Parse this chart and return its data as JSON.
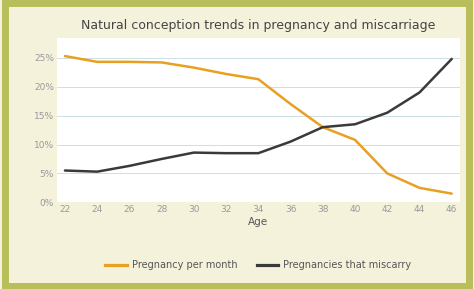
{
  "title": "Natural conception trends in pregnancy and miscarriage",
  "xlabel": "Age",
  "outer_bg": "#f5f2dc",
  "plot_background": "#ffffff",
  "border_color": "#b8be5a",
  "ages": [
    22,
    24,
    26,
    28,
    30,
    32,
    34,
    36,
    38,
    40,
    42,
    44,
    46
  ],
  "pregnancy_per_month": [
    0.253,
    0.243,
    0.243,
    0.242,
    0.233,
    0.222,
    0.213,
    0.17,
    0.13,
    0.108,
    0.05,
    0.025,
    0.015
  ],
  "pregnancies_miscarry": [
    0.055,
    0.053,
    0.063,
    0.075,
    0.086,
    0.085,
    0.085,
    0.105,
    0.13,
    0.135,
    0.155,
    0.19,
    0.248
  ],
  "line_color_pregnancy": "#e8a020",
  "line_color_miscarry": "#3a3a3a",
  "ylim": [
    0,
    0.285
  ],
  "yticks": [
    0,
    0.05,
    0.1,
    0.15,
    0.2,
    0.25
  ],
  "ytick_labels": [
    "0%",
    "5%",
    "10%",
    "15%",
    "20%",
    "25%"
  ],
  "xticks": [
    22,
    24,
    26,
    28,
    30,
    32,
    34,
    36,
    38,
    40,
    42,
    44,
    46
  ],
  "legend_label_pregnancy": "Pregnancy per month",
  "legend_label_miscarry": "Pregnancies that miscarry",
  "title_fontsize": 9,
  "axis_label_fontsize": 7.5,
  "tick_fontsize": 6.5,
  "legend_fontsize": 7,
  "line_width": 1.8,
  "grid_color": "#c8d8e0",
  "tick_color": "#999999",
  "label_color": "#555555",
  "title_color": "#444444"
}
